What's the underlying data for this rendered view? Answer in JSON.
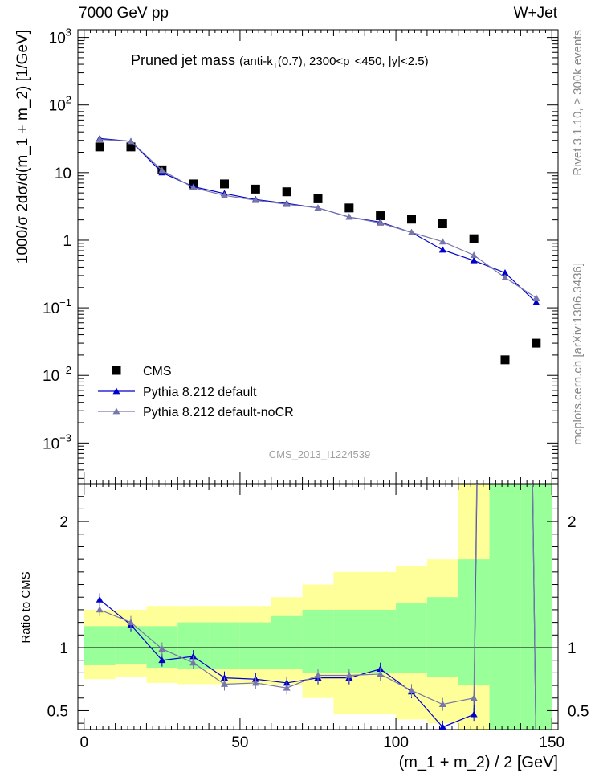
{
  "header": {
    "left": "7000 GeV pp",
    "right": "W+Jet"
  },
  "side_labels": {
    "rivet": "Rivet 3.1.10, ≥ 300k events",
    "mcplots": "mcplots.cern.ch [arXiv:1306.3436]"
  },
  "chart_data": {
    "type": "scatter",
    "title": "Pruned jet mass (anti-k_T(0.7), 2300<p_T<450, |y|<2.5)",
    "watermark": "CMS_2013_I1224539",
    "xlabel": "(m_1 + m_2) / 2 [GeV]",
    "ylabel_main": "1000/σ 2dσ/d(m_1 + m_2) [1/GeV]",
    "ylabel_ratio": "Ratio to CMS",
    "xlim": [
      -2,
      152
    ],
    "x_ticks": [
      "0",
      "50",
      "100",
      "150"
    ],
    "main": {
      "yscale": "log",
      "ylim": [
        0.00025,
        1300
      ],
      "y_ticks": [
        {
          "base": "10",
          "exp": "3"
        },
        {
          "base": "10",
          "exp": "2"
        },
        {
          "base": "10",
          "exp": ""
        },
        {
          "base": "1",
          "exp": ""
        },
        {
          "base": "10",
          "exp": "−1"
        },
        {
          "base": "10",
          "exp": "−2"
        },
        {
          "base": "10",
          "exp": "−3"
        }
      ]
    },
    "ratio": {
      "ylim": [
        0.35,
        2.3
      ],
      "y_ticks": [
        "2",
        "1",
        "0.5"
      ]
    },
    "x": [
      5,
      15,
      25,
      35,
      45,
      55,
      65,
      75,
      85,
      95,
      105,
      115,
      125,
      135,
      145
    ],
    "bin_edges": [
      0,
      10,
      20,
      30,
      40,
      50,
      60,
      70,
      80,
      90,
      100,
      110,
      120,
      130,
      140,
      150
    ],
    "series": [
      {
        "name": "CMS",
        "color": "#000000",
        "marker": "square",
        "values": [
          24,
          24,
          11,
          6.8,
          6.8,
          5.7,
          5.2,
          4.1,
          3.0,
          2.3,
          2.05,
          1.75,
          1.05,
          0.017,
          0.03
        ]
      },
      {
        "name": "Pythia 8.212 default",
        "color": "#0000cc",
        "marker": "triangle",
        "values": [
          32,
          29,
          10,
          6.2,
          4.9,
          4.0,
          3.5,
          3.0,
          2.2,
          1.85,
          1.3,
          0.72,
          0.5,
          0.33,
          0.12
        ],
        "ratio": [
          1.38,
          1.18,
          0.9,
          0.93,
          0.76,
          0.75,
          0.72,
          0.76,
          0.76,
          0.83,
          0.65,
          0.37,
          0.47,
          19,
          0.1
        ]
      },
      {
        "name": "Pythia 8.212 default-noCR",
        "color": "#7777aa",
        "marker": "triangle",
        "values": [
          31,
          29,
          10.8,
          6.0,
          4.6,
          3.9,
          3.4,
          3.0,
          2.2,
          1.8,
          1.3,
          0.95,
          0.6,
          0.28,
          0.14
        ],
        "ratio": [
          1.3,
          1.2,
          0.99,
          0.88,
          0.71,
          0.72,
          0.68,
          0.78,
          0.78,
          0.79,
          0.66,
          0.55,
          0.6,
          19,
          0.1
        ]
      }
    ],
    "ratio_band_inner": [
      [
        0.86,
        1.17
      ],
      [
        0.87,
        1.17
      ],
      [
        0.84,
        1.17
      ],
      [
        0.83,
        1.2
      ],
      [
        0.83,
        1.2
      ],
      [
        0.83,
        1.2
      ],
      [
        0.83,
        1.25
      ],
      [
        0.8,
        1.3
      ],
      [
        0.8,
        1.3
      ],
      [
        0.8,
        1.3
      ],
      [
        0.8,
        1.35
      ],
      [
        0.77,
        1.4
      ],
      [
        0.7,
        1.7
      ],
      [
        0.3,
        2.5
      ],
      [
        0.3,
        2.5
      ]
    ],
    "ratio_band_outer": [
      [
        0.75,
        1.3
      ],
      [
        0.77,
        1.3
      ],
      [
        0.72,
        1.33
      ],
      [
        0.71,
        1.33
      ],
      [
        0.71,
        1.33
      ],
      [
        0.71,
        1.33
      ],
      [
        0.7,
        1.4
      ],
      [
        0.6,
        1.5
      ],
      [
        0.47,
        1.6
      ],
      [
        0.47,
        1.6
      ],
      [
        0.43,
        1.65
      ],
      [
        0.4,
        1.7
      ],
      [
        0.35,
        2.3
      ],
      [
        0.3,
        2.5
      ],
      [
        0.3,
        2.5
      ]
    ]
  }
}
